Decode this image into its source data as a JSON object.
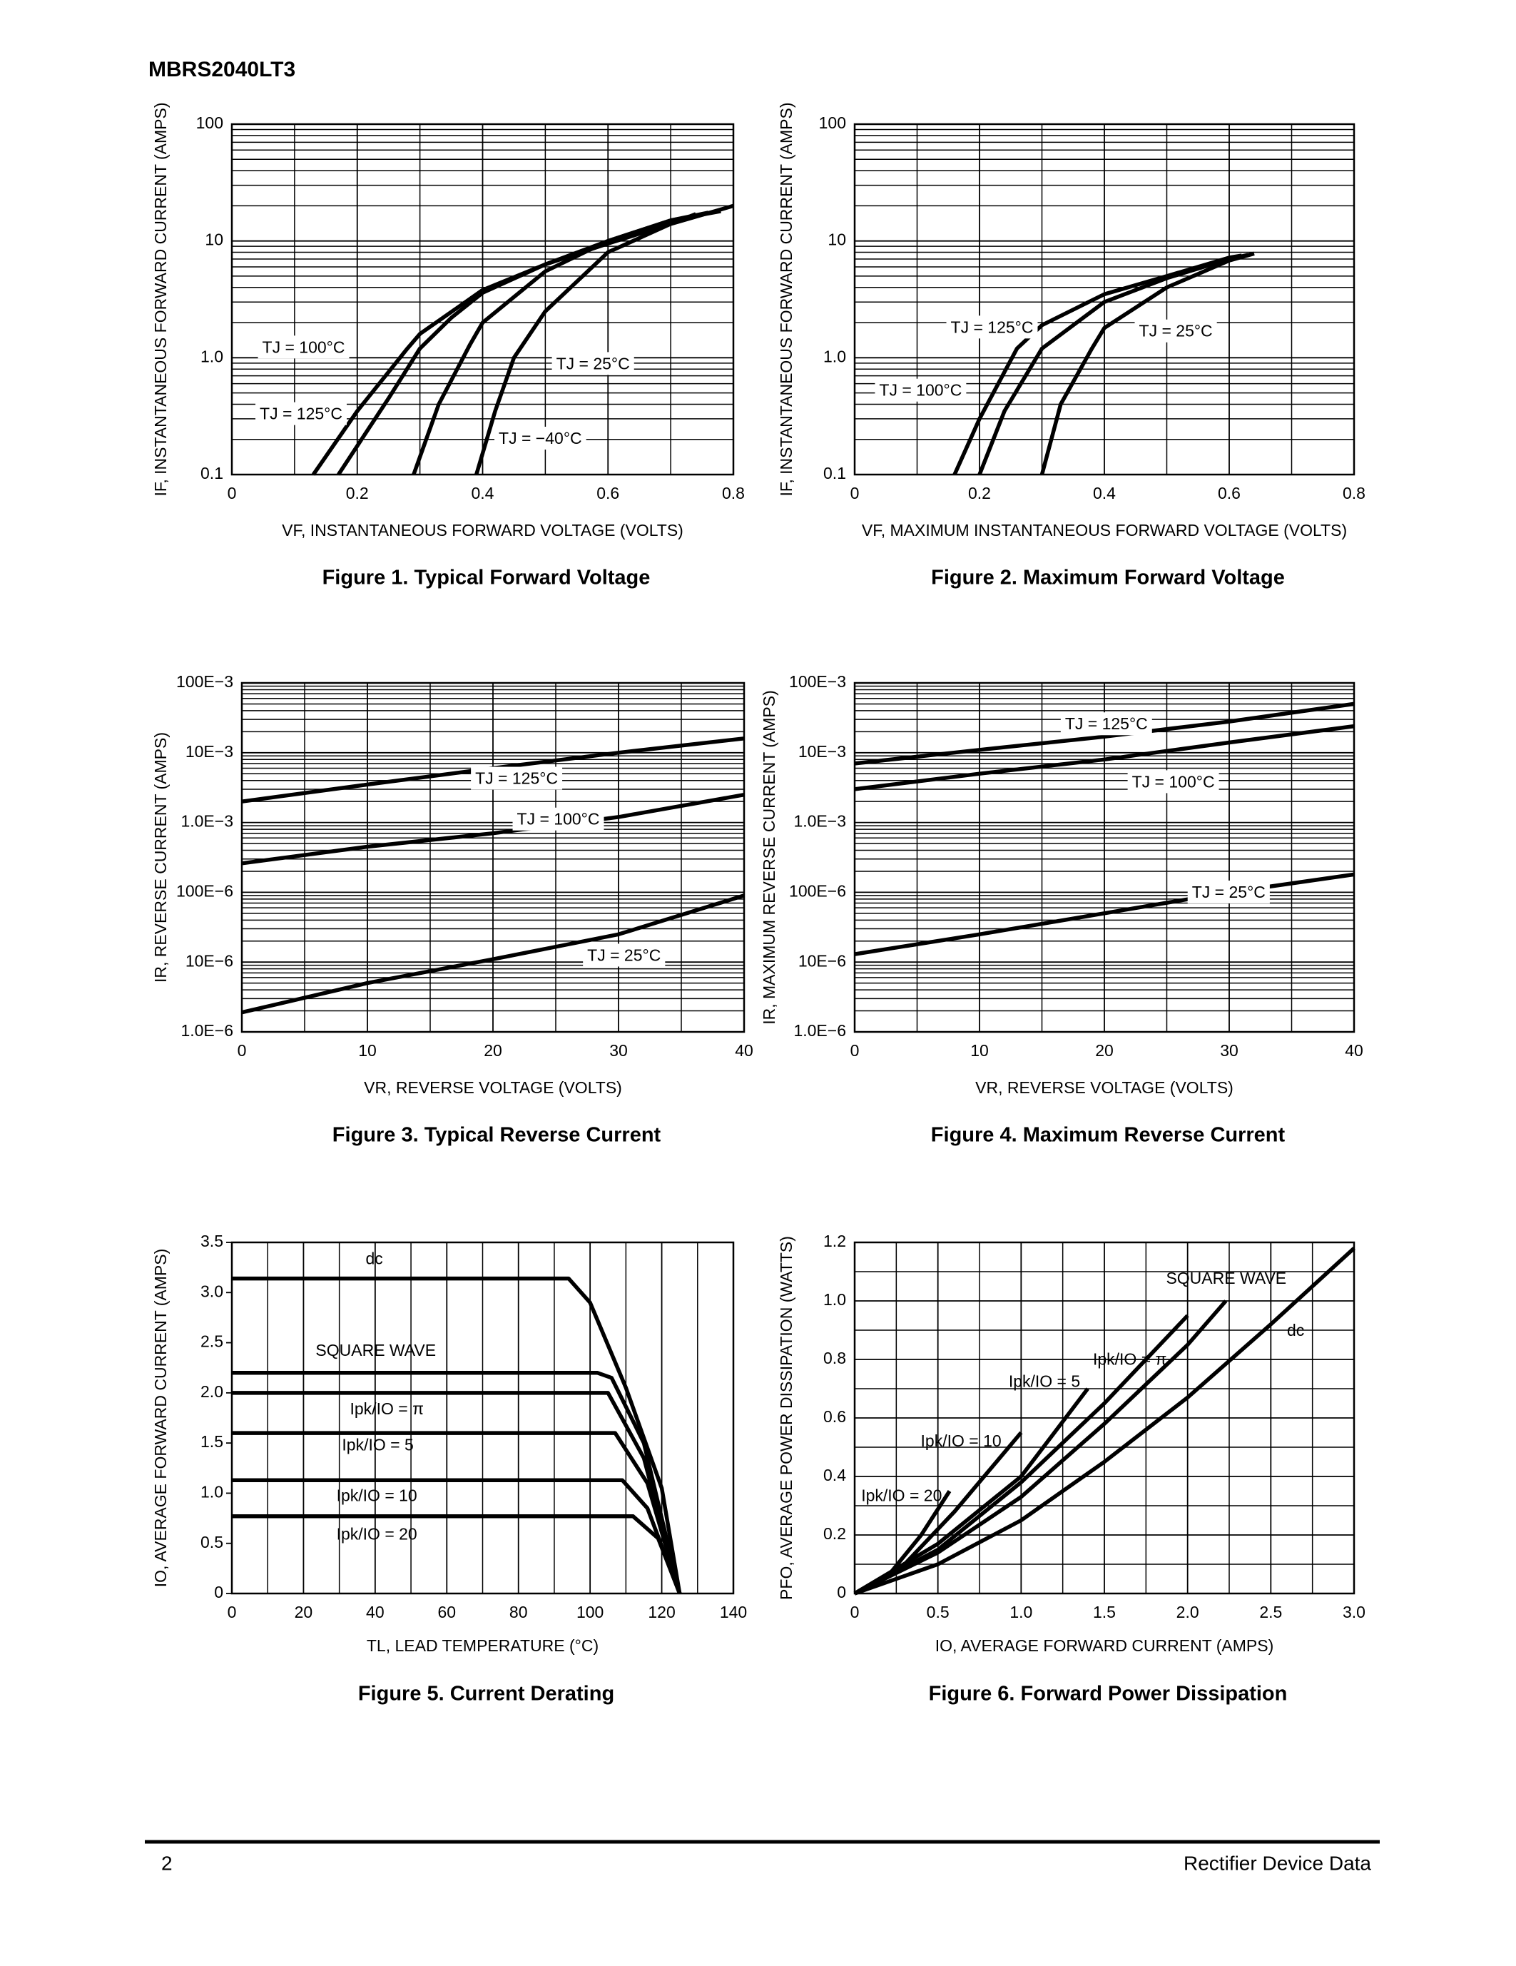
{
  "header": "MBRS2040LT3",
  "footer": {
    "page": 2,
    "text": "Rectifier Device Data"
  },
  "chart_data": [
    {
      "type": "line",
      "title": "Figure 1. Typical Forward Voltage",
      "xlabel": "VF, INSTANTANEOUS FORWARD VOLTAGE (VOLTS)",
      "ylabel": "IF, INSTANTANEOUS FORWARD CURRENT (AMPS)",
      "xlim": [
        0,
        0.8
      ],
      "ylim": [
        0.1,
        100
      ],
      "ylog": true,
      "grid": "both",
      "xticks": [
        0,
        0.2,
        0.4,
        0.6,
        0.8
      ],
      "yticks": [
        0.1,
        {
          "value": 1,
          "label": "1.0"
        },
        10,
        100
      ],
      "series": [
        {
          "name": "TJ = 100°C",
          "color": "#000000",
          "x": [
            0.17,
            0.25,
            0.3,
            0.35,
            0.4,
            0.5,
            0.6,
            0.7,
            0.76
          ],
          "values": [
            0.1,
            0.45,
            1.2,
            2.2,
            3.6,
            6.3,
            10,
            15,
            17.5
          ]
        },
        {
          "name": "TJ = 125°C",
          "color": "#000000",
          "x": [
            0.13,
            0.2,
            0.28,
            0.3,
            0.4,
            0.5,
            0.6,
            0.7,
            0.74
          ],
          "values": [
            0.1,
            0.35,
            1.2,
            1.6,
            3.8,
            6.3,
            9.5,
            14,
            17
          ]
        },
        {
          "name": "TJ = 25°C",
          "color": "#000000",
          "x": [
            0.29,
            0.33,
            0.38,
            0.4,
            0.5,
            0.6,
            0.7,
            0.78
          ],
          "values": [
            0.1,
            0.4,
            1.3,
            2,
            5.5,
            10,
            15,
            18
          ]
        },
        {
          "name": "TJ = −40°C",
          "color": "#000000",
          "x": [
            0.39,
            0.42,
            0.45,
            0.5,
            0.6,
            0.7,
            0.8
          ],
          "values": [
            0.1,
            0.35,
            1,
            2.5,
            8,
            14,
            20
          ]
        }
      ]
    },
    {
      "type": "line",
      "title": "Figure 2. Maximum Forward Voltage",
      "xlabel": "VF, MAXIMUM INSTANTANEOUS FORWARD VOLTAGE (VOLTS)",
      "ylabel": "IF, INSTANTANEOUS FORWARD CURRENT (AMPS)",
      "xlim": [
        0,
        0.8
      ],
      "ylim": [
        0.1,
        100
      ],
      "ylog": true,
      "grid": "both",
      "xticks": [
        0,
        0.2,
        0.4,
        0.6,
        0.8
      ],
      "yticks": [
        0.1,
        {
          "value": 1,
          "label": "1.0"
        },
        10,
        100
      ],
      "series": [
        {
          "name": "TJ = 125°C",
          "color": "#000000",
          "x": [
            0.16,
            0.2,
            0.26,
            0.3,
            0.4,
            0.5,
            0.6,
            0.62
          ],
          "values": [
            0.1,
            0.3,
            1.2,
            1.9,
            3.5,
            5,
            7.2,
            7.5
          ]
        },
        {
          "name": "TJ = 100°C",
          "color": "#000000",
          "x": [
            0.2,
            0.24,
            0.3,
            0.4,
            0.5,
            0.6,
            0.63
          ],
          "values": [
            0.1,
            0.35,
            1.2,
            3,
            4.8,
            7,
            7.6
          ]
        },
        {
          "name": "TJ = 25°C",
          "color": "#000000",
          "x": [
            0.3,
            0.33,
            0.38,
            0.4,
            0.5,
            0.6,
            0.64
          ],
          "values": [
            0.1,
            0.4,
            1.2,
            1.8,
            4,
            6.8,
            7.8
          ]
        }
      ]
    },
    {
      "type": "line",
      "title": "Figure 3. Typical Reverse Current",
      "xlabel": "VR, REVERSE VOLTAGE (VOLTS)",
      "ylabel": "IR, REVERSE CURRENT (AMPS)",
      "xlim": [
        0,
        40
      ],
      "ylim": [
        1e-06,
        0.1
      ],
      "ylog": true,
      "grid": "both",
      "xticks": [
        0,
        10,
        20,
        30,
        40
      ],
      "yticks": [
        {
          "value": 1e-06,
          "label": "1.0E−6"
        },
        {
          "value": 1e-05,
          "label": "10E−6"
        },
        {
          "value": 0.0001,
          "label": "100E−6"
        },
        {
          "value": 0.001,
          "label": "1.0E−3"
        },
        {
          "value": 0.01,
          "label": "10E−3"
        },
        {
          "value": 0.1,
          "label": "100E−3"
        }
      ],
      "series": [
        {
          "name": "TJ = 125°C",
          "color": "#000000",
          "x": [
            0,
            10,
            20,
            30,
            40
          ],
          "values": [
            0.002,
            0.0035,
            0.006,
            0.01,
            0.016
          ]
        },
        {
          "name": "TJ = 100°C",
          "color": "#000000",
          "x": [
            0,
            10,
            20,
            30,
            40
          ],
          "values": [
            0.00026,
            0.00045,
            0.0007,
            0.0012,
            0.0025
          ]
        },
        {
          "name": "TJ = 25°C",
          "color": "#000000",
          "x": [
            0,
            10,
            20,
            30,
            40
          ],
          "values": [
            1.9e-06,
            5e-06,
            1.1e-05,
            2.5e-05,
            9e-05
          ]
        }
      ]
    },
    {
      "type": "line",
      "title": "Figure 4. Maximum Reverse Current",
      "xlabel": "VR, REVERSE VOLTAGE (VOLTS)",
      "ylabel": "IR, MAXIMUM REVERSE CURRENT (AMPS)",
      "xlim": [
        0,
        40
      ],
      "ylim": [
        1e-06,
        0.1
      ],
      "ylog": true,
      "grid": "both",
      "xticks": [
        0,
        10,
        20,
        30,
        40
      ],
      "yticks": [
        {
          "value": 1e-06,
          "label": "1.0E−6"
        },
        {
          "value": 1e-05,
          "label": "10E−6"
        },
        {
          "value": 0.0001,
          "label": "100E−6"
        },
        {
          "value": 0.001,
          "label": "1.0E−3"
        },
        {
          "value": 0.01,
          "label": "10E−3"
        },
        {
          "value": 0.1,
          "label": "100E−3"
        }
      ],
      "series": [
        {
          "name": "TJ = 125°C",
          "color": "#000000",
          "x": [
            0,
            10,
            20,
            30,
            40
          ],
          "values": [
            0.007,
            0.011,
            0.017,
            0.028,
            0.05
          ]
        },
        {
          "name": "TJ = 100°C",
          "color": "#000000",
          "x": [
            0,
            10,
            20,
            30,
            40
          ],
          "values": [
            0.003,
            0.005,
            0.008,
            0.014,
            0.024
          ]
        },
        {
          "name": "TJ = 25°C",
          "color": "#000000",
          "x": [
            0,
            10,
            20,
            30,
            40
          ],
          "values": [
            1.3e-05,
            2.5e-05,
            5e-05,
            0.0001,
            0.00018
          ]
        }
      ]
    },
    {
      "type": "line",
      "title": "Figure 5. Current Derating",
      "xlabel": "TL, LEAD TEMPERATURE (°C)",
      "ylabel": "IO, AVERAGE FORWARD CURRENT (AMPS)",
      "xlim": [
        0,
        140
      ],
      "ylim": [
        0,
        3.5
      ],
      "ylog": false,
      "grid": "x",
      "xticks": [
        0,
        20,
        40,
        60,
        80,
        100,
        120,
        140
      ],
      "yticks": [
        0,
        0.5,
        {
          "value": 1,
          "label": "1.0"
        },
        1.5,
        {
          "value": 2,
          "label": "2.0"
        },
        2.5,
        {
          "value": 3,
          "label": "3.0"
        },
        3.5
      ],
      "series": [
        {
          "name": "dc",
          "color": "#000000",
          "x": [
            0,
            94,
            100,
            110,
            120,
            125
          ],
          "values": [
            3.14,
            3.14,
            2.9,
            2.05,
            1.05,
            0
          ]
        },
        {
          "name": "SQUARE WAVE",
          "color": "#000000",
          "x": [
            0,
            102,
            106,
            115,
            125
          ],
          "values": [
            2.2,
            2.2,
            2.15,
            1.5,
            0
          ]
        },
        {
          "name": "Ipk/IO = π",
          "color": "#000000",
          "x": [
            0,
            105,
            115,
            125
          ],
          "values": [
            2,
            2,
            1.35,
            0
          ]
        },
        {
          "name": "Ipk/IO = 5",
          "color": "#000000",
          "x": [
            0,
            107,
            116,
            125
          ],
          "values": [
            1.6,
            1.6,
            1.1,
            0
          ]
        },
        {
          "name": "Ipk/IO = 10",
          "color": "#000000",
          "x": [
            0,
            109,
            116,
            125
          ],
          "values": [
            1.13,
            1.13,
            0.85,
            0
          ]
        },
        {
          "name": "Ipk/IO = 20",
          "color": "#000000",
          "x": [
            0,
            112,
            119,
            125
          ],
          "values": [
            0.77,
            0.77,
            0.55,
            0
          ]
        }
      ]
    },
    {
      "type": "line",
      "title": "Figure 6. Forward Power Dissipation",
      "xlabel": "IO, AVERAGE FORWARD CURRENT (AMPS)",
      "ylabel": "PFO, AVERAGE POWER DISSIPATION (WATTS)",
      "xlim": [
        0,
        3
      ],
      "ylim": [
        0,
        1.2
      ],
      "ylog": false,
      "grid": "both",
      "xticks": [
        0,
        0.5,
        {
          "value": 1,
          "label": "1.0"
        },
        1.5,
        {
          "value": 2,
          "label": "2.0"
        },
        2.5,
        {
          "value": 3,
          "label": "3.0"
        }
      ],
      "yticks": [
        0,
        0.2,
        0.4,
        0.6,
        0.8,
        {
          "value": 1,
          "label": "1.0"
        },
        1.2
      ],
      "series": [
        {
          "name": "Ipk/IO = 20",
          "color": "#000000",
          "x": [
            0,
            0.2,
            0.4,
            0.57
          ],
          "values": [
            0,
            0.06,
            0.2,
            0.35
          ]
        },
        {
          "name": "Ipk/IO = 10",
          "color": "#000000",
          "x": [
            0,
            0.3,
            0.6,
            1
          ],
          "values": [
            0,
            0.1,
            0.28,
            0.55
          ]
        },
        {
          "name": "Ipk/IO = 5",
          "color": "#000000",
          "x": [
            0,
            0.5,
            1,
            1.4
          ],
          "values": [
            0,
            0.17,
            0.4,
            0.7
          ]
        },
        {
          "name": "Ipk/IO = π",
          "color": "#000000",
          "x": [
            0,
            0.5,
            1,
            1.5,
            2
          ],
          "values": [
            0,
            0.15,
            0.38,
            0.65,
            0.95
          ]
        },
        {
          "name": "SQUARE WAVE",
          "color": "#000000",
          "x": [
            0,
            0.5,
            1,
            1.5,
            2,
            2.23
          ],
          "values": [
            0,
            0.14,
            0.33,
            0.58,
            0.85,
            1
          ]
        },
        {
          "name": "dc",
          "color": "#000000",
          "x": [
            0,
            0.5,
            1,
            1.5,
            2,
            2.5,
            3
          ],
          "values": [
            0,
            0.1,
            0.25,
            0.45,
            0.67,
            0.92,
            1.18
          ]
        }
      ]
    }
  ]
}
